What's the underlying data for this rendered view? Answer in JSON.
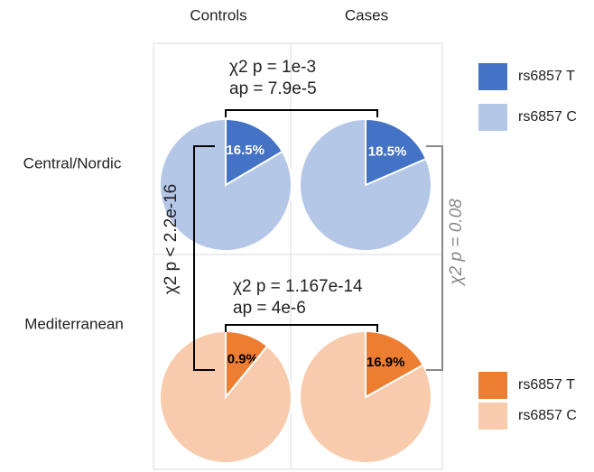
{
  "chart_data": {
    "type": "pie",
    "columns": [
      "Controls",
      "Cases"
    ],
    "categories": [
      "rs6857 T",
      "rs6857 C"
    ],
    "groups": [
      {
        "name": "Central/Nordic",
        "colors": [
          "#4472c4",
          "#b4c7e7"
        ],
        "label_color": "#ffffff",
        "pies": [
          {
            "values": [
              16.5,
              83.5
            ],
            "value_labels": [
              "16.5%",
              null
            ]
          },
          {
            "values": [
              18.5,
              81.5
            ],
            "value_labels": [
              "18.5%",
              null
            ]
          }
        ]
      },
      {
        "name": "Mediterranean",
        "colors": [
          "#ed7d31",
          "#f8cbad"
        ],
        "label_color": "#000000",
        "pies": [
          {
            "values": [
              10.9,
              89.1
            ],
            "value_labels": [
              "10.9%",
              null
            ]
          },
          {
            "values": [
              16.9,
              83.1
            ],
            "value_labels": [
              "16.9%",
              null
            ]
          }
        ]
      }
    ],
    "annotations": {
      "top": [
        "χ2 p = 1e-3",
        "ap = 7.9e-5"
      ],
      "bottom": [
        "χ2 p = 1.167e-14",
        "ap = 4e-6"
      ],
      "left": "χ2  p < 2.2e-16",
      "right": "χ2  p = 0.08"
    }
  }
}
